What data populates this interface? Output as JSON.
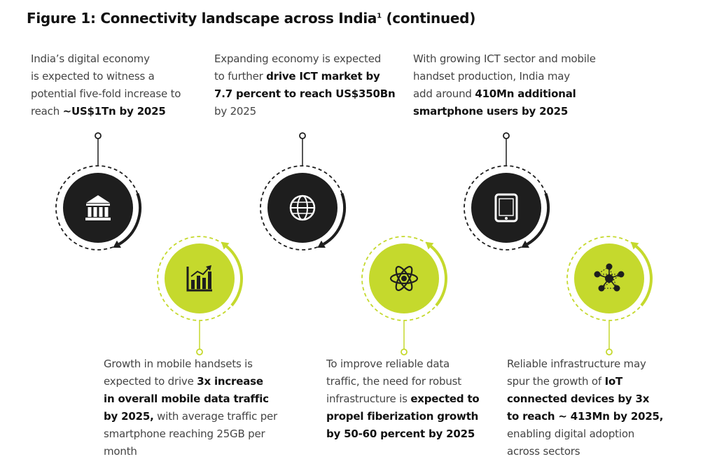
{
  "title": {
    "main": "Figure 1: Connectivity landscape across India",
    "superscript": "1",
    "suffix": " (continued)"
  },
  "colors": {
    "dark_circle": "#1e1e1e",
    "green_circle": "#c5d92d",
    "dashed_ring": "#1e1e1e",
    "green_dashed_ring": "#c5d92d",
    "icon_on_dark": "#ffffff",
    "icon_on_green": "#1e1e1e"
  },
  "top_items": [
    {
      "icon": "bank-icon",
      "lines": [
        [
          {
            "t": "India’s digital economy",
            "b": false
          }
        ],
        [
          {
            "t": "is expected to witness a",
            "b": false
          }
        ],
        [
          {
            "t": "potential five-fold increase to",
            "b": false
          }
        ],
        [
          {
            "t": "reach ",
            "b": false
          },
          {
            "t": "~US$1Tn by 2025",
            "b": true
          }
        ]
      ]
    },
    {
      "icon": "globe-icon",
      "lines": [
        [
          {
            "t": "Expanding economy is expected",
            "b": false
          }
        ],
        [
          {
            "t": "to further ",
            "b": false
          },
          {
            "t": "drive ICT market by",
            "b": true
          }
        ],
        [
          {
            "t": "7.7 percent to reach US$350Bn",
            "b": true
          }
        ],
        [
          {
            "t": "by 2025",
            "b": false
          }
        ]
      ]
    },
    {
      "icon": "tablet-icon",
      "lines": [
        [
          {
            "t": "With growing ICT sector and mobile",
            "b": false
          }
        ],
        [
          {
            "t": "handset production, India may",
            "b": false
          }
        ],
        [
          {
            "t": "add around ",
            "b": false
          },
          {
            "t": "410Mn additional",
            "b": true
          }
        ],
        [
          {
            "t": "smartphone users by 2025",
            "b": true
          }
        ]
      ]
    }
  ],
  "bottom_items": [
    {
      "icon": "bar-chart-icon",
      "lines": [
        [
          {
            "t": "Growth in mobile handsets is",
            "b": false
          }
        ],
        [
          {
            "t": "expected to drive ",
            "b": false
          },
          {
            "t": "3x increase",
            "b": true
          }
        ],
        [
          {
            "t": "in overall mobile data traffic",
            "b": true
          }
        ],
        [
          {
            "t": "by 2025,",
            "b": true
          },
          {
            "t": " with average traffic per",
            "b": false
          }
        ],
        [
          {
            "t": "smartphone reaching 25GB per",
            "b": false
          }
        ],
        [
          {
            "t": "month",
            "b": false
          }
        ]
      ]
    },
    {
      "icon": "atom-icon",
      "lines": [
        [
          {
            "t": "To improve reliable data",
            "b": false
          }
        ],
        [
          {
            "t": "traffic, the need for robust",
            "b": false
          }
        ],
        [
          {
            "t": "infrastructure is ",
            "b": false
          },
          {
            "t": "expected to",
            "b": true
          }
        ],
        [
          {
            "t": "propel fiberization growth",
            "b": true
          }
        ],
        [
          {
            "t": "by 50-60 percent by 2025",
            "b": true
          }
        ]
      ]
    },
    {
      "icon": "network-icon",
      "lines": [
        [
          {
            "t": "Reliable infrastructure may",
            "b": false
          }
        ],
        [
          {
            "t": "spur the growth of ",
            "b": false
          },
          {
            "t": "IoT",
            "b": true
          }
        ],
        [
          {
            "t": "connected devices by 3x",
            "b": true
          }
        ],
        [
          {
            "t": "to reach ~ 413Mn by 2025,",
            "b": true
          }
        ],
        [
          {
            "t": "enabling digital adoption",
            "b": false
          }
        ],
        [
          {
            "t": "across sectors",
            "b": false
          }
        ]
      ]
    }
  ]
}
